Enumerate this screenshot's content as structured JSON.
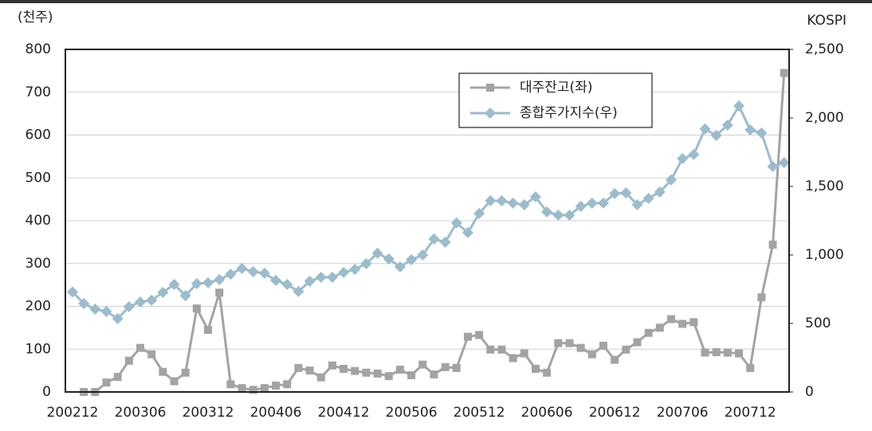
{
  "chart_data": {
    "type": "line",
    "y_label": "(천주)",
    "y2_label": "KOSPI",
    "categories": [
      "200212",
      null,
      null,
      null,
      null,
      null,
      "200306",
      null,
      null,
      null,
      null,
      null,
      "200312",
      null,
      null,
      null,
      null,
      null,
      "200406",
      null,
      null,
      null,
      null,
      null,
      "200412",
      null,
      null,
      null,
      null,
      null,
      "200506",
      null,
      null,
      null,
      null,
      null,
      "200512",
      null,
      null,
      null,
      null,
      null,
      "200606",
      null,
      null,
      null,
      null,
      null,
      "200612",
      null,
      null,
      null,
      null,
      null,
      "200706",
      null,
      null,
      null,
      null,
      null,
      "200712",
      null,
      null,
      null
    ],
    "series": [
      {
        "name": "대주잔고(좌)",
        "color": "#a3a3a5",
        "marker": "square",
        "axis": "y",
        "values": [
          null,
          0,
          0,
          22,
          35,
          73,
          103,
          88,
          47,
          25,
          45,
          195,
          145,
          232,
          18,
          9,
          5,
          9,
          15,
          18,
          56,
          50,
          34,
          62,
          54,
          49,
          45,
          43,
          37,
          52,
          39,
          64,
          41,
          58,
          56,
          129,
          133,
          99,
          99,
          79,
          90,
          54,
          45,
          114,
          114,
          103,
          88,
          108,
          75,
          99,
          116,
          138,
          150,
          170,
          159,
          163,
          92,
          93,
          92,
          90,
          56,
          221,
          344,
          745
        ]
      },
      {
        "name": "종합주가지수(우)",
        "color": "#9bbccc",
        "marker": "diamond",
        "axis": "y2",
        "values": [
          730,
          645,
          605,
          587,
          535,
          622,
          657,
          669,
          727,
          785,
          703,
          791,
          797,
          820,
          860,
          901,
          878,
          866,
          814,
          785,
          733,
          808,
          837,
          837,
          872,
          895,
          936,
          1012,
          971,
          913,
          965,
          1000,
          1116,
          1093,
          1233,
          1163,
          1302,
          1395,
          1395,
          1378,
          1366,
          1424,
          1314,
          1291,
          1291,
          1355,
          1378,
          1378,
          1448,
          1453,
          1366,
          1413,
          1459,
          1547,
          1703,
          1733,
          1919,
          1872,
          1948,
          2087,
          1913,
          1890,
          1645,
          1674
        ]
      }
    ],
    "ylim": [
      0,
      800
    ],
    "yticks": [
      0,
      100,
      200,
      300,
      400,
      500,
      600,
      700,
      800
    ],
    "y2lim": [
      0,
      2500
    ],
    "y2ticks": [
      0,
      500,
      {
        "value": 1000,
        "label": "1,000"
      },
      {
        "value": 1500,
        "label": "1,500"
      },
      {
        "value": 2000,
        "label": "2,000"
      },
      {
        "value": 2500,
        "label": "2,500"
      }
    ],
    "grid": true,
    "legend": "top-right"
  }
}
